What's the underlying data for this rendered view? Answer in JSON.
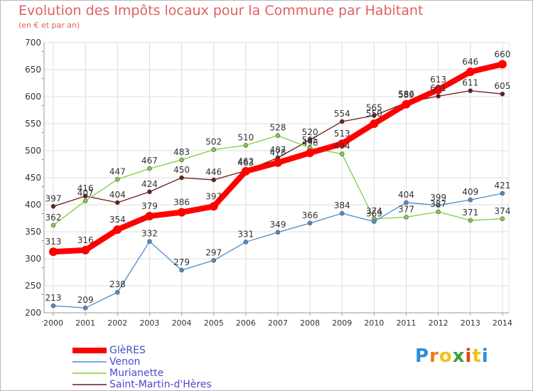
{
  "chart_data": {
    "type": "line",
    "title": "Evolution des Impôts locaux pour la Commune par Habitant",
    "subtitle": "(en € et par an)",
    "xlabel": "",
    "ylabel": "",
    "ylim": [
      200,
      700
    ],
    "yticks": [
      200,
      250,
      300,
      350,
      400,
      450,
      500,
      550,
      600,
      650,
      700
    ],
    "categories": [
      "2000",
      "2001",
      "2002",
      "2003",
      "2004",
      "2005",
      "2006",
      "2007",
      "2008",
      "2009",
      "2010",
      "2011",
      "2012",
      "2013",
      "2014"
    ],
    "grid": true,
    "legend_position": "bottom-left",
    "series": [
      {
        "name": "Saint-Martin-d'Hères",
        "color": "#6b1a1a",
        "values": [
          397,
          416,
          404,
          424,
          450,
          446,
          463,
          487,
          520,
          554,
          565,
          589,
          601,
          611,
          605
        ]
      },
      {
        "name": "Murianette",
        "color": "#80cc40",
        "values": [
          362,
          407,
          447,
          467,
          483,
          502,
          510,
          528,
          505,
          494,
          374,
          377,
          387,
          371,
          374
        ]
      },
      {
        "name": "Venon",
        "color": "#4a8ccc",
        "values": [
          213,
          209,
          238,
          332,
          279,
          297,
          331,
          349,
          366,
          384,
          369,
          404,
          399,
          409,
          421
        ]
      },
      {
        "name": "GlèRES",
        "color": "#ff0000",
        "values": [
          313,
          316,
          354,
          379,
          386,
          397,
          462,
          478,
          496,
          513,
          550,
          586,
          613,
          646,
          660
        ]
      }
    ],
    "legend": [
      "GlèRES",
      "Venon",
      "Murianette",
      "Saint-Martin-d'Hères"
    ]
  },
  "logo": {
    "letters": [
      "P",
      "r",
      "o",
      "x",
      "i",
      "t",
      "i"
    ],
    "colors": [
      "#2a8fd8",
      "#f07a1a",
      "#f2c018",
      "#3aa03a",
      "#e0401a",
      "#f2c018",
      "#2a8fd8"
    ]
  }
}
